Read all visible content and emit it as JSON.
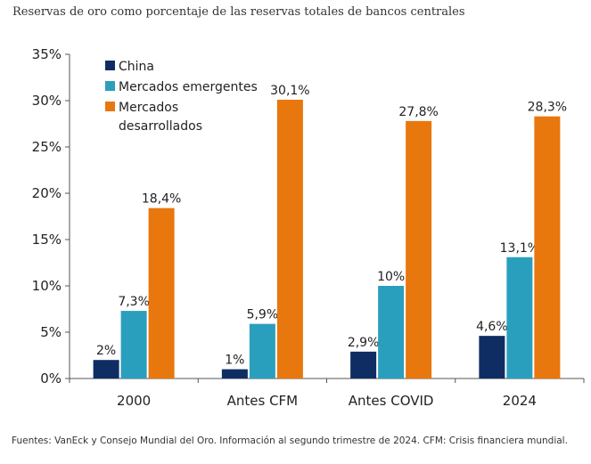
{
  "chart_data": {
    "type": "bar",
    "title": "Reservas de oro como porcentaje de las reservas totales de bancos centrales",
    "categories": [
      "2000",
      "Antes CFM",
      "Antes COVID",
      "2024"
    ],
    "series": [
      {
        "name": "China",
        "color": "#0f2d63",
        "values": [
          2.0,
          1.0,
          2.9,
          4.6
        ],
        "labels": [
          "2%",
          "1%",
          "2,9%",
          "4,6%"
        ]
      },
      {
        "name": "Mercados emergentes",
        "color": "#2a9fbd",
        "values": [
          7.3,
          5.9,
          10.0,
          13.1
        ],
        "labels": [
          "7,3%",
          "5,9%",
          "10%",
          "13,1%"
        ]
      },
      {
        "name": "Mercados desarrollados",
        "color": "#e8770d",
        "values": [
          18.4,
          30.1,
          27.8,
          28.3
        ],
        "labels": [
          "18,4%",
          "30,1%",
          "27,8%",
          "28,3%"
        ]
      }
    ],
    "legend_display": [
      {
        "lines": [
          "China"
        ]
      },
      {
        "lines": [
          "Mercados emergentes"
        ]
      },
      {
        "lines": [
          "Mercados",
          "desarrollados"
        ]
      }
    ],
    "ylim": [
      0,
      35
    ],
    "yticks": [
      0,
      5,
      10,
      15,
      20,
      25,
      30,
      35
    ],
    "ytick_labels": [
      "0%",
      "5%",
      "10%",
      "15%",
      "20%",
      "25%",
      "30%",
      "35%"
    ],
    "xlabel": "",
    "ylabel": "",
    "grid": false,
    "legend_position": "top-left"
  },
  "footer": {
    "source": "Fuentes: VanEck y Consejo Mundial del Oro. Información al segundo trimestre de 2024. CFM: Crisis financiera mundial."
  }
}
